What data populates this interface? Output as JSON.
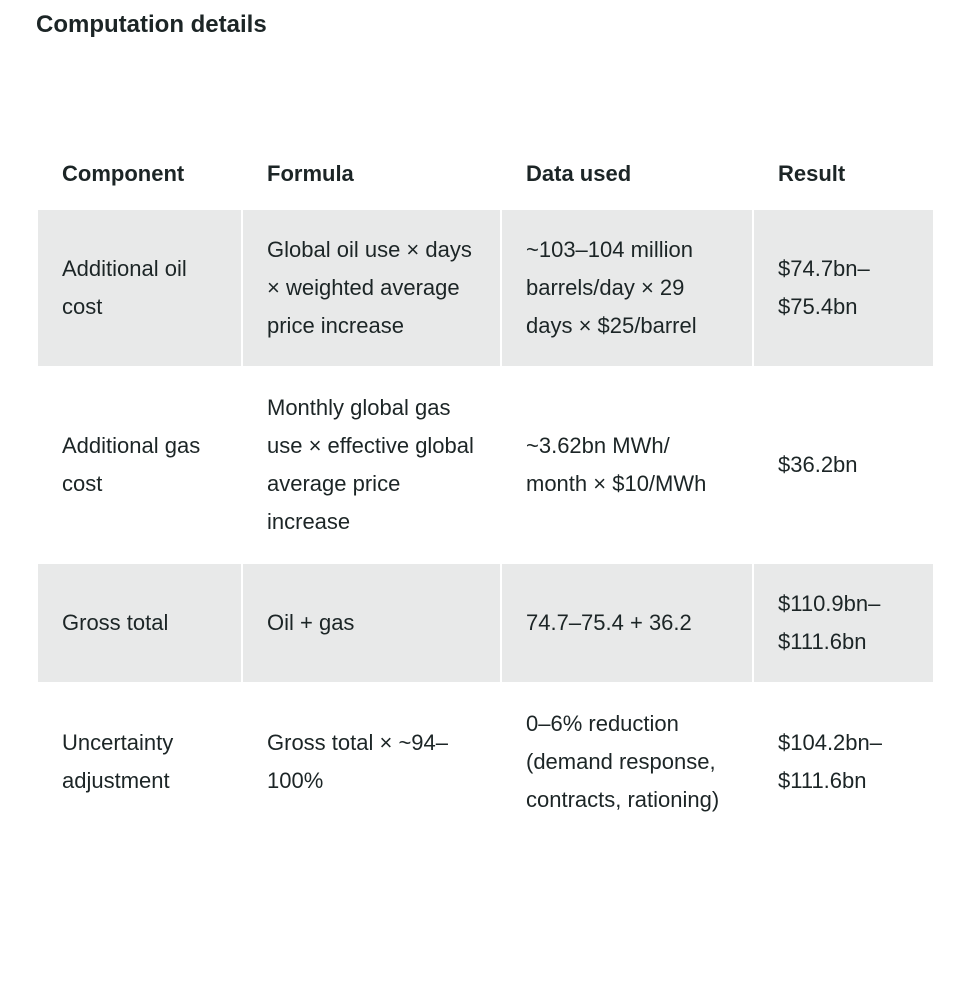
{
  "title": "Computation details",
  "table": {
    "header": [
      "Component",
      "Formula",
      "Data used",
      "Result"
    ],
    "rows": [
      [
        "Additional oil cost",
        "Global oil use × days × weighted average price increase",
        "~103–104 million barrels/day × 29 days × $25/barrel",
        "$74.7bn–$75.4bn"
      ],
      [
        "Additional gas cost",
        "Monthly global gas use × effective global average price increase",
        "~3.62bn MWh/ month × $10/MWh",
        "$36.2bn"
      ],
      [
        "Gross total",
        "Oil + gas",
        "74.7–75.4 + 36.2",
        "$110.9bn–$111.6bn"
      ],
      [
        "Uncertainty adjustment",
        "Gross total × ~94–100%",
        "0–6% reduction (demand response, contracts, rationing)",
        "$104.2bn–$111.6bn"
      ]
    ]
  }
}
